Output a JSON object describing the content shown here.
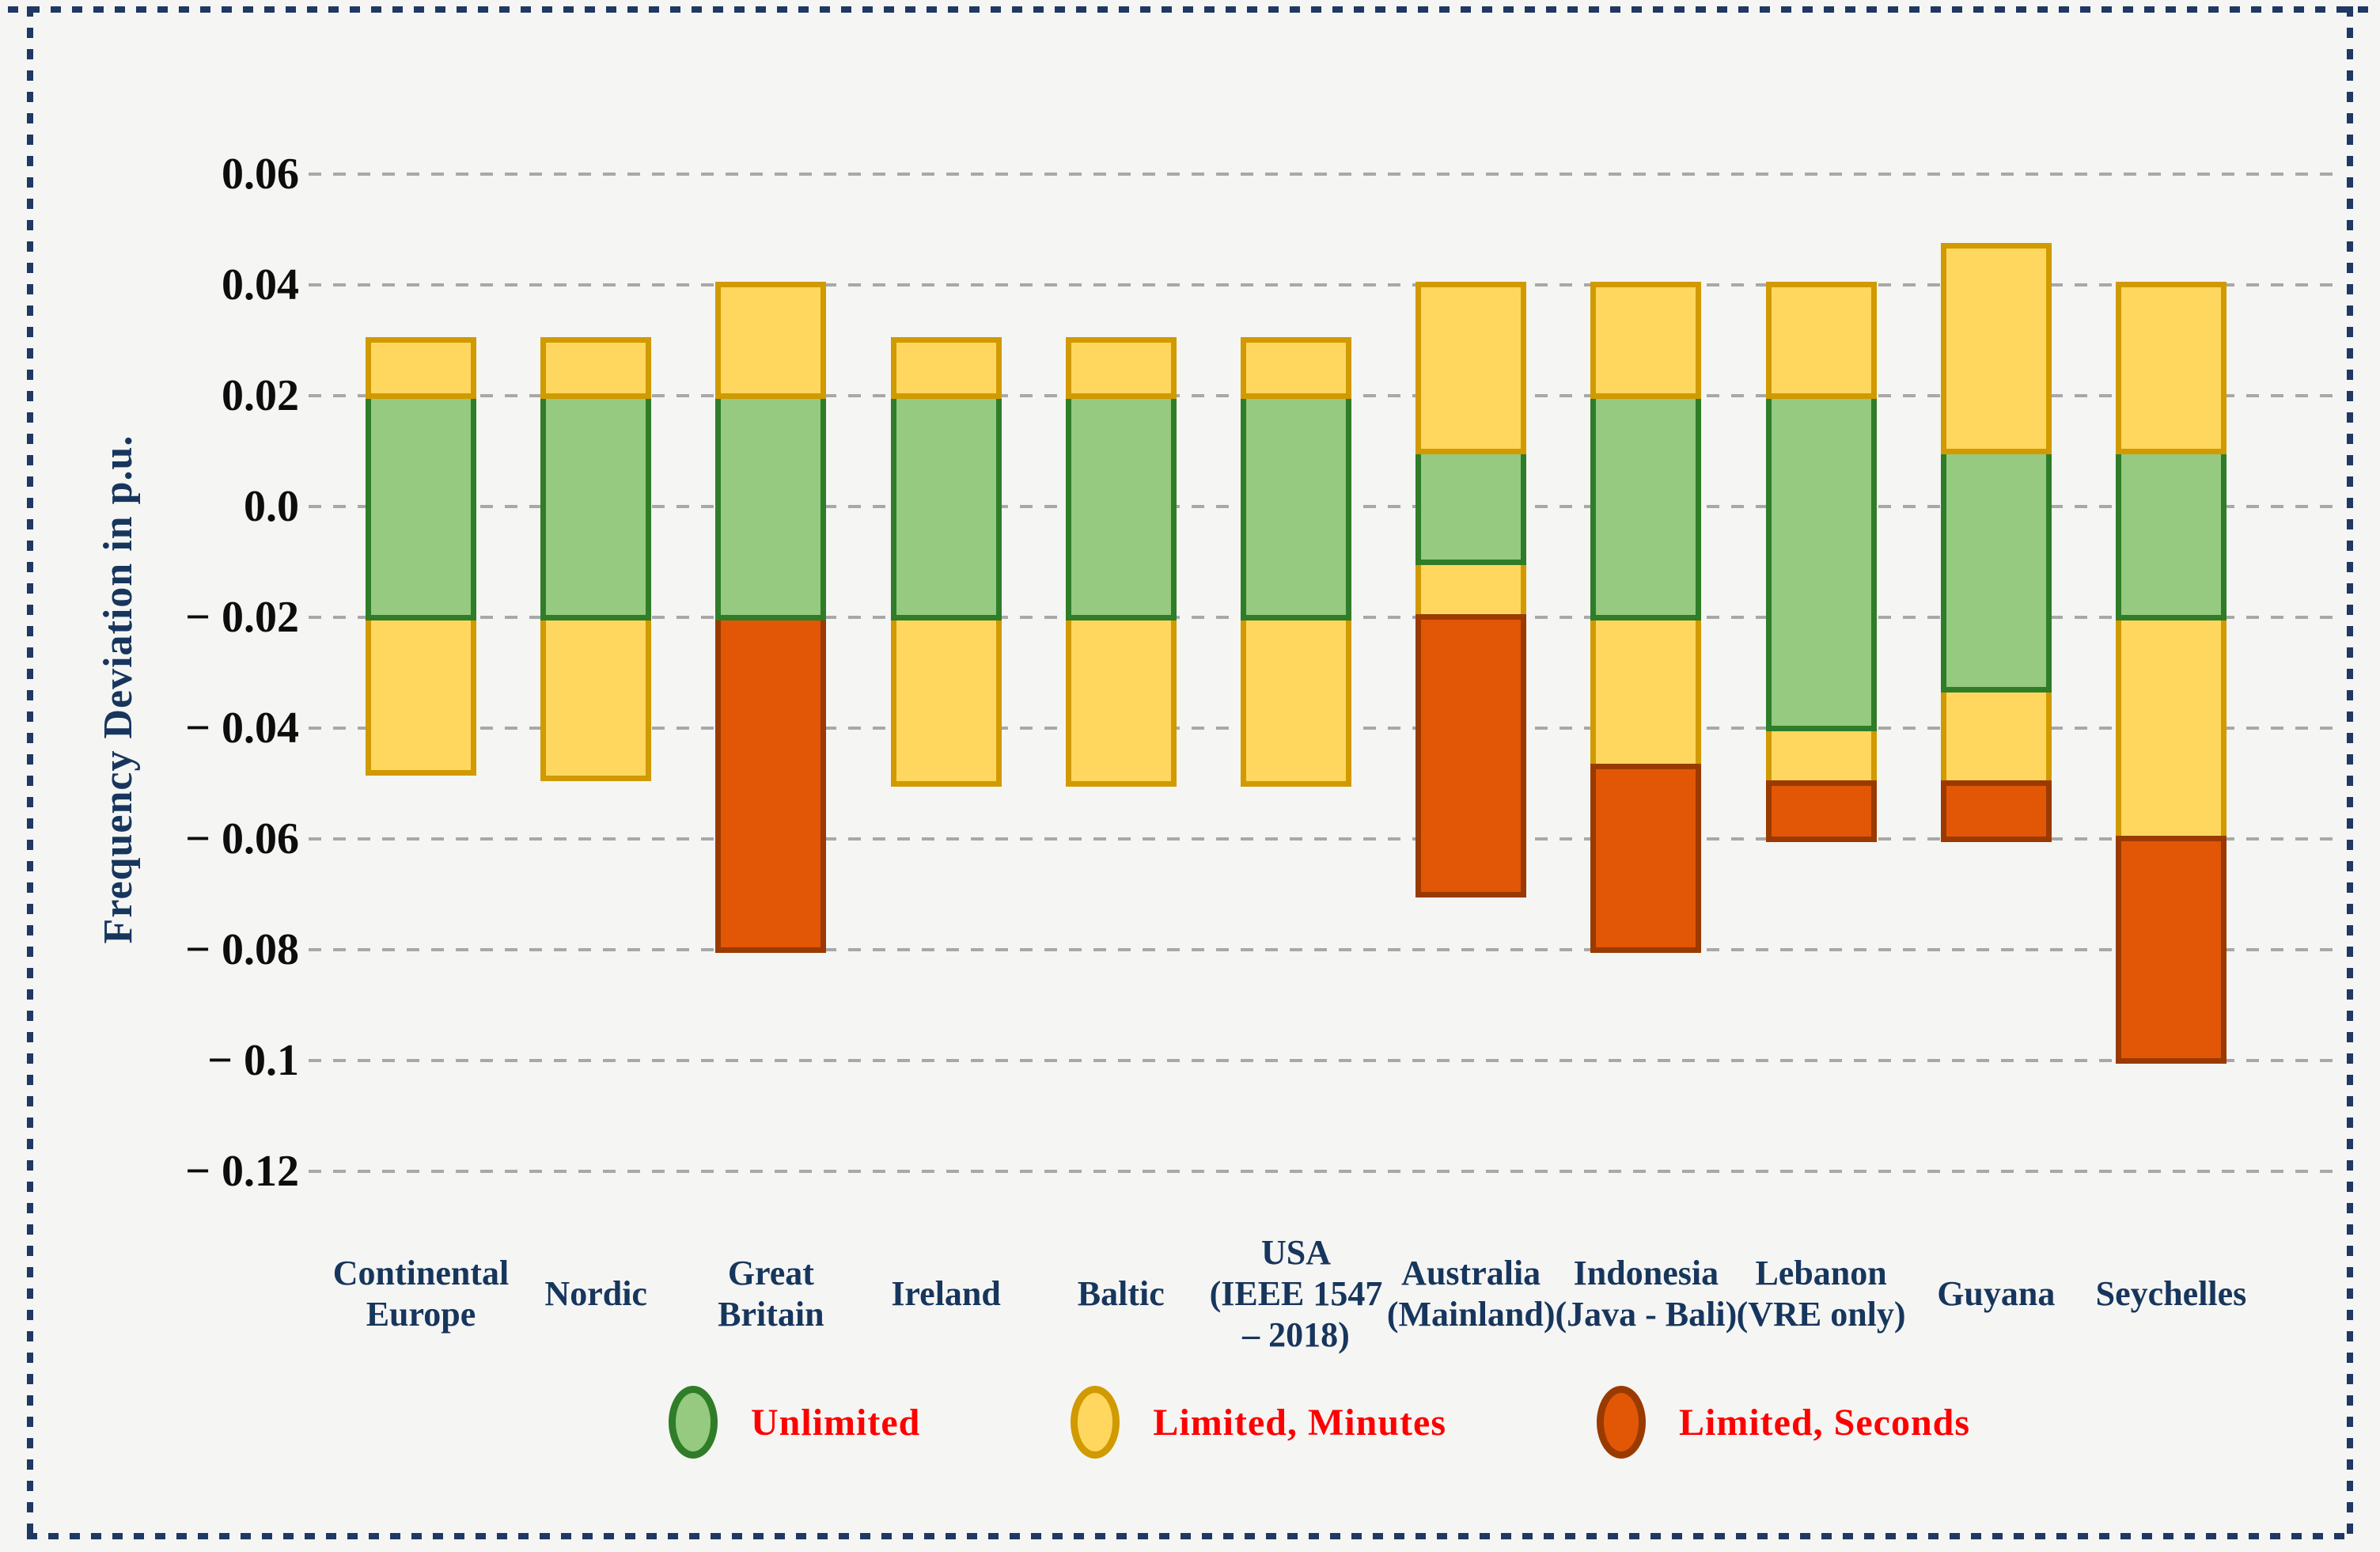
{
  "figure": {
    "background_color": "#f5f5f3",
    "border_color": "#1f3864",
    "gridline_color": "#a8a8a8"
  },
  "y_axis": {
    "title": "Frequency Deviation in p.u.",
    "tick_labels": [
      "0.06",
      "0.04",
      "0.02",
      "0.0",
      "− 0.02",
      "− 0.04",
      "− 0.06",
      "− 0.08",
      "− 0.1",
      "− 0.12"
    ],
    "tick_values": [
      0.06,
      0.04,
      0.02,
      0.0,
      -0.02,
      -0.04,
      -0.06,
      -0.08,
      -0.1,
      -0.12
    ]
  },
  "legend": {
    "text_color": "#ff0000",
    "items": [
      {
        "key": "unlimited",
        "label": "Unlimited"
      },
      {
        "key": "limited_minutes",
        "label": "Limited, Minutes"
      },
      {
        "key": "limited_seconds",
        "label": "Limited, Seconds"
      }
    ]
  },
  "band_colors": {
    "unlimited": {
      "fill": "#95ca80",
      "stroke": "#2f7d28"
    },
    "limited_minutes": {
      "fill": "#ffd75f",
      "stroke": "#d09a00"
    },
    "limited_seconds": {
      "fill": "#e15706",
      "stroke": "#9a3a00"
    }
  },
  "chart_data": {
    "type": "bar",
    "subtype": "stacked-range-columns",
    "title": "",
    "xlabel": "",
    "ylabel": "Frequency Deviation in p.u.",
    "ylim": [
      -0.12,
      0.06
    ],
    "grid": true,
    "legend_position": "bottom",
    "categories": [
      "Continental\nEurope",
      "Nordic",
      "Great\nBritain",
      "Ireland",
      "Baltic",
      "USA\n(IEEE 1547\n– 2018)",
      "Australia\n(Mainland)",
      "Indonesia\n(Java - Bali)",
      "Lebanon\n(VRE only)",
      "Guyana",
      "Seychelles"
    ],
    "bars": [
      {
        "category": "Continental Europe",
        "segments": [
          {
            "band": "limited_minutes",
            "from": 0.02,
            "to": 0.03
          },
          {
            "band": "unlimited",
            "from": -0.02,
            "to": 0.02
          },
          {
            "band": "limited_minutes",
            "from": -0.048,
            "to": -0.02
          }
        ]
      },
      {
        "category": "Nordic",
        "segments": [
          {
            "band": "limited_minutes",
            "from": 0.02,
            "to": 0.03
          },
          {
            "band": "unlimited",
            "from": -0.02,
            "to": 0.02
          },
          {
            "band": "limited_minutes",
            "from": -0.049,
            "to": -0.02
          }
        ]
      },
      {
        "category": "Great Britain",
        "segments": [
          {
            "band": "limited_minutes",
            "from": 0.02,
            "to": 0.04
          },
          {
            "band": "unlimited",
            "from": -0.02,
            "to": 0.02
          },
          {
            "band": "limited_seconds",
            "from": -0.08,
            "to": -0.02
          }
        ]
      },
      {
        "category": "Ireland",
        "segments": [
          {
            "band": "limited_minutes",
            "from": 0.02,
            "to": 0.03
          },
          {
            "band": "unlimited",
            "from": -0.02,
            "to": 0.02
          },
          {
            "band": "limited_minutes",
            "from": -0.05,
            "to": -0.02
          }
        ]
      },
      {
        "category": "Baltic",
        "segments": [
          {
            "band": "limited_minutes",
            "from": 0.02,
            "to": 0.03
          },
          {
            "band": "unlimited",
            "from": -0.02,
            "to": 0.02
          },
          {
            "band": "limited_minutes",
            "from": -0.05,
            "to": -0.02
          }
        ]
      },
      {
        "category": "USA (IEEE 1547 – 2018)",
        "segments": [
          {
            "band": "limited_minutes",
            "from": 0.02,
            "to": 0.03
          },
          {
            "band": "unlimited",
            "from": -0.02,
            "to": 0.02
          },
          {
            "band": "limited_minutes",
            "from": -0.05,
            "to": -0.02
          }
        ]
      },
      {
        "category": "Australia (Mainland)",
        "segments": [
          {
            "band": "limited_minutes",
            "from": 0.01,
            "to": 0.04
          },
          {
            "band": "unlimited",
            "from": -0.01,
            "to": 0.01
          },
          {
            "band": "limited_minutes",
            "from": -0.02,
            "to": -0.01
          },
          {
            "band": "limited_seconds",
            "from": -0.07,
            "to": -0.02
          }
        ]
      },
      {
        "category": "Indonesia (Java - Bali)",
        "segments": [
          {
            "band": "limited_minutes",
            "from": 0.02,
            "to": 0.04
          },
          {
            "band": "unlimited",
            "from": -0.02,
            "to": 0.02
          },
          {
            "band": "limited_minutes",
            "from": -0.047,
            "to": -0.02
          },
          {
            "band": "limited_seconds",
            "from": -0.08,
            "to": -0.047
          }
        ]
      },
      {
        "category": "Lebanon (VRE only)",
        "segments": [
          {
            "band": "limited_minutes",
            "from": 0.02,
            "to": 0.04
          },
          {
            "band": "unlimited",
            "from": -0.04,
            "to": 0.02
          },
          {
            "band": "limited_minutes",
            "from": -0.05,
            "to": -0.04
          },
          {
            "band": "limited_seconds",
            "from": -0.06,
            "to": -0.05
          }
        ]
      },
      {
        "category": "Guyana",
        "segments": [
          {
            "band": "limited_minutes",
            "from": 0.01,
            "to": 0.047
          },
          {
            "band": "unlimited",
            "from": -0.033,
            "to": 0.01
          },
          {
            "band": "limited_minutes",
            "from": -0.05,
            "to": -0.033
          },
          {
            "band": "limited_seconds",
            "from": -0.06,
            "to": -0.05
          }
        ]
      },
      {
        "category": "Seychelles",
        "segments": [
          {
            "band": "limited_minutes",
            "from": 0.01,
            "to": 0.04
          },
          {
            "band": "unlimited",
            "from": -0.02,
            "to": 0.01
          },
          {
            "band": "limited_minutes",
            "from": -0.06,
            "to": -0.02
          },
          {
            "band": "limited_seconds",
            "from": -0.1,
            "to": -0.06
          }
        ]
      }
    ]
  }
}
